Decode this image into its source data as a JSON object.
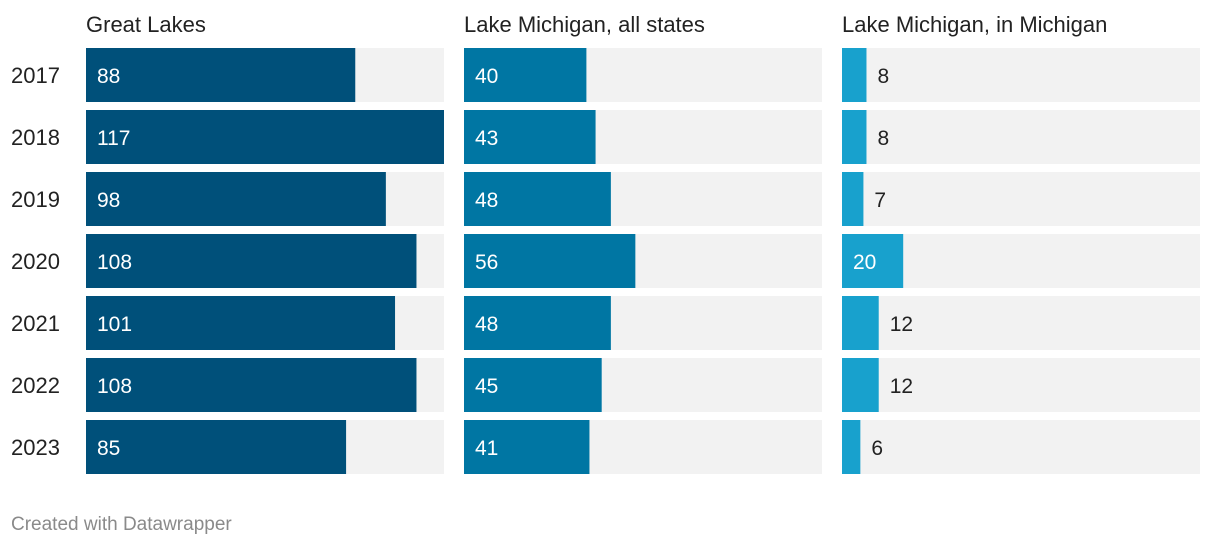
{
  "chart_data": {
    "type": "bar",
    "orientation": "horizontal",
    "categories": [
      "2017",
      "2018",
      "2019",
      "2020",
      "2021",
      "2022",
      "2023"
    ],
    "series": [
      {
        "name": "Great Lakes",
        "values": [
          88,
          117,
          98,
          108,
          101,
          108,
          85
        ],
        "color": "#00507a",
        "xlim": [
          0,
          117
        ]
      },
      {
        "name": "Lake Michigan, all states",
        "values": [
          40,
          43,
          48,
          56,
          48,
          45,
          41
        ],
        "color": "#0076a3",
        "xlim": [
          0,
          117
        ]
      },
      {
        "name": "Lake Michigan, in Michigan",
        "values": [
          8,
          8,
          7,
          20,
          12,
          12,
          6
        ],
        "color": "#18a1cd",
        "xlim": [
          0,
          117
        ]
      }
    ],
    "background_color": "#f2f2f2",
    "grid": false,
    "legend": "none"
  },
  "footer": {
    "credit": "Created with Datawrapper"
  }
}
